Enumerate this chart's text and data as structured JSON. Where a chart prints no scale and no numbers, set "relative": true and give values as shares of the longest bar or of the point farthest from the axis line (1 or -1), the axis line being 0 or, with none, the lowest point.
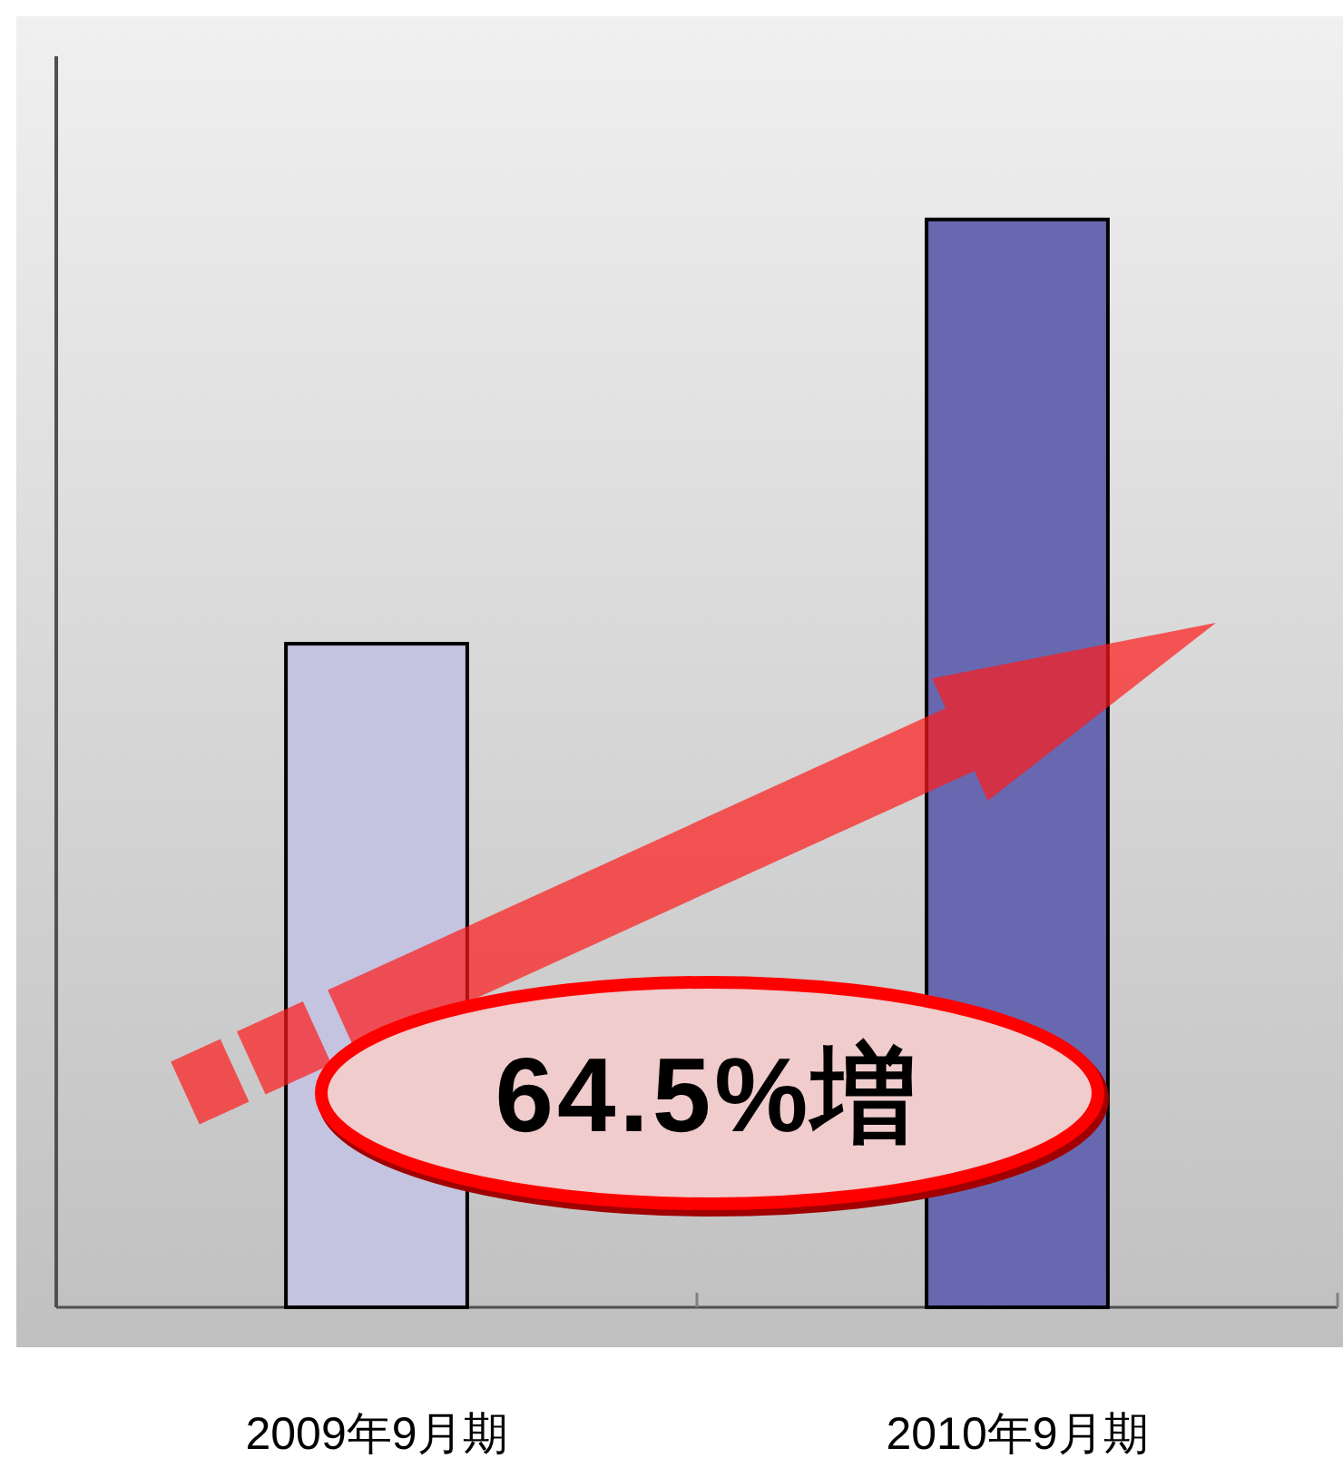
{
  "chart_data": {
    "type": "bar",
    "categories": [
      "2009年9月期",
      "2010年9月期"
    ],
    "values": [
      0.61,
      1
    ],
    "colors": [
      "#c4c4e0",
      "#6868b0"
    ],
    "relative": true,
    "annotations": [
      "64.5%増"
    ]
  }
}
